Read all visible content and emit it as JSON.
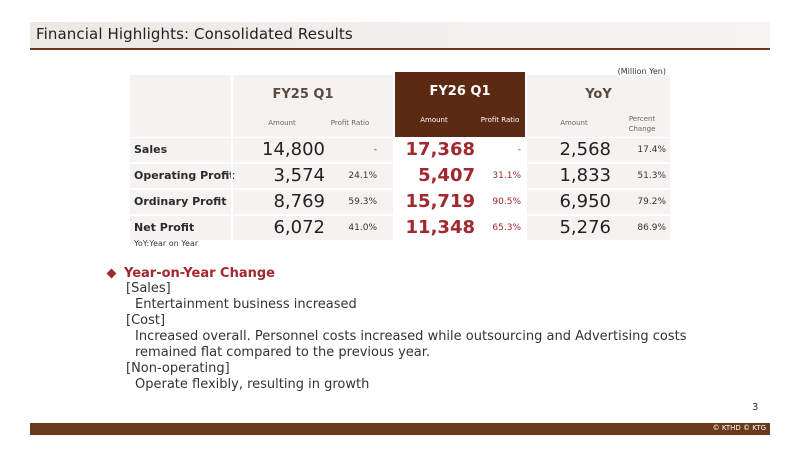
{
  "slide": {
    "title": "Financial Highlights: Consolidated Results",
    "unit_note": "(Million Yen)",
    "page_number": "3",
    "copyright": "© KTHD © KTG",
    "footnote": "YoY:Year on Year"
  },
  "table": {
    "groups": [
      {
        "label": "FY25 Q1",
        "subs": [
          "Amount",
          "Profit Ratio"
        ]
      },
      {
        "label": "FY26 Q1",
        "subs": [
          "Amount",
          "Profit Ratio"
        ]
      },
      {
        "label": "YoY",
        "subs": [
          "Amount",
          "Percent",
          "Change"
        ]
      }
    ],
    "rows": [
      {
        "label": "Sales",
        "fy25_amount": "14,800",
        "fy25_ratio": "-",
        "fy26_amount": "17,368",
        "fy26_ratio": "-",
        "yoy_amount": "2,568",
        "yoy_pct": "17.4%"
      },
      {
        "label": "Operating Profit",
        "fy25_amount": "3,574",
        "fy25_ratio": "24.1%",
        "fy26_amount": "5,407",
        "fy26_ratio": "31.1%",
        "yoy_amount": "1,833",
        "yoy_pct": "51.3%"
      },
      {
        "label": "Ordinary Profit",
        "fy25_amount": "8,769",
        "fy25_ratio": "59.3%",
        "fy26_amount": "15,719",
        "fy26_ratio": "90.5%",
        "yoy_amount": "6,950",
        "yoy_pct": "79.2%"
      },
      {
        "label": "Net Profit",
        "fy25_amount": "6,072",
        "fy25_ratio": "41.0%",
        "fy26_amount": "11,348",
        "fy26_ratio": "65.3%",
        "yoy_amount": "5,276",
        "yoy_pct": "86.9%"
      }
    ]
  },
  "commentary": {
    "heading": "Year-on-Year Change",
    "lines": [
      "[Sales]",
      "Entertainment business increased",
      "[Cost]",
      "Increased overall. Personnel costs increased while outsourcing and Advertising costs",
      "remained flat compared to the previous year.",
      "[Non-operating]",
      "Operate flexibly, resulting in growth"
    ]
  },
  "colors": {
    "accent_brown": "#6b3a1c",
    "highlight_header": "#5c2a12",
    "accent_red": "#a0282e",
    "row_bg": "#f5f3f1"
  }
}
